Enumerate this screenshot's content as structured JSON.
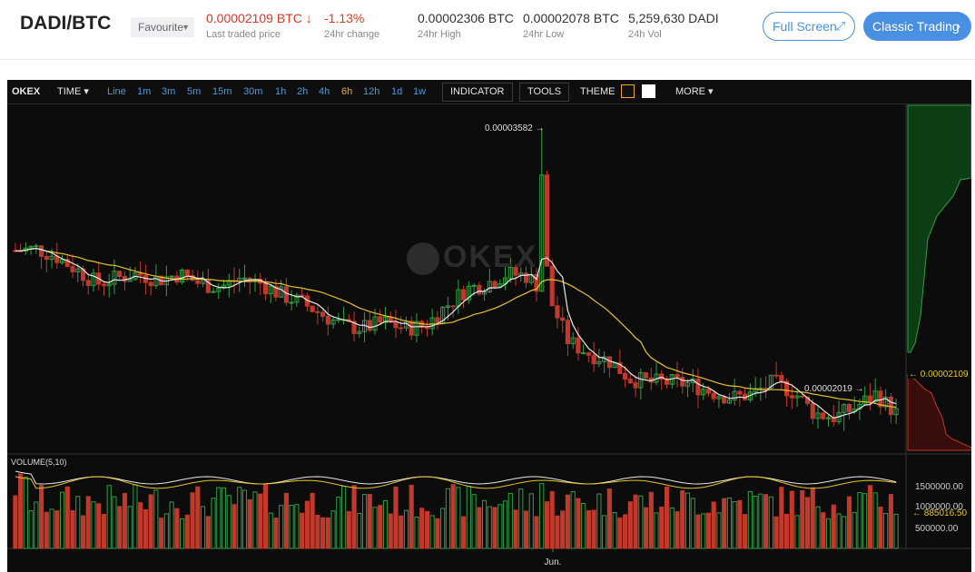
{
  "header": {
    "pair": "DADI/BTC",
    "favourite": "Favourite",
    "last_price": "0.00002109 BTC",
    "last_price_arrow": "↓",
    "last_price_label": "Last traded price",
    "change": "-1.13%",
    "change_label": "24hr change",
    "high": "0.00002306 BTC",
    "high_label": "24hr High",
    "low": "0.00002078 BTC",
    "low_label": "24hr Low",
    "vol": "5,259,630 DADI",
    "vol_label": "24h Vol",
    "full_screen": "Full Screen",
    "full_screen_icon": "expand-icon",
    "classic": "Classic Trading",
    "classic_icon": "chevron-right-icon"
  },
  "toolbar": {
    "brand": "OKEX",
    "time": "TIME ▾",
    "intervals": [
      "Line",
      "1m",
      "3m",
      "5m",
      "15m",
      "30m",
      "1h",
      "2h",
      "4h",
      "6h",
      "12h",
      "1d",
      "1w"
    ],
    "active_interval": "6h",
    "indicator": "INDICATOR",
    "tools": "TOOLS",
    "theme": "THEME",
    "more": "MORE ▾"
  },
  "chart": {
    "watermark": "OKEX",
    "volume_title": "VOLUME(5,10)",
    "x_label": "Jun.",
    "max_label": "0.00003582 →",
    "min_label": "0.00002019 →",
    "last_label": "← 0.00002109",
    "vol_ticks": [
      "1500000.00",
      "1000000.00",
      "500000.00"
    ],
    "vol_last": "← 885016.50",
    "colors": {
      "up": "#2ea043",
      "down": "#c0392b",
      "ma_short": "#e8e8e8",
      "ma_long": "#e6c229",
      "bg": "#0c0c0c",
      "accent": "#4a90e2"
    }
  },
  "chart_data": {
    "type": "candlestick",
    "title": "DADI/BTC",
    "price_markers": {
      "max": 3.582e-05,
      "min": 2.019e-05,
      "last": 2.109e-05
    },
    "price_series_approx": [
      2.95e-05,
      2.96e-05,
      2.92e-05,
      2.85e-05,
      2.78e-05,
      2.81e-05,
      2.83e-05,
      2.8e-05,
      2.83e-05,
      2.78e-05,
      2.76e-05,
      2.81e-05,
      2.78e-05,
      2.72e-05,
      2.68e-05,
      2.62e-05,
      2.56e-05,
      2.55e-05,
      2.58e-05,
      2.55e-05,
      2.56e-05,
      2.66e-05,
      2.75e-05,
      2.78e-05,
      2.83e-05,
      2.82e-05,
      2.72e-05,
      2.48e-05,
      2.42e-05,
      2.38e-05,
      2.29e-05,
      2.27e-05,
      2.27e-05,
      2.26e-05,
      2.22e-05,
      2.19e-05,
      2.21e-05,
      2.27e-05,
      2.22e-05,
      2.11e-05,
      2.09e-05,
      2.14e-05,
      2.21e-05,
      2.11e-05
    ],
    "volume_ticks": [
      1500000,
      1000000,
      500000
    ],
    "volume_last": 885016.5
  }
}
